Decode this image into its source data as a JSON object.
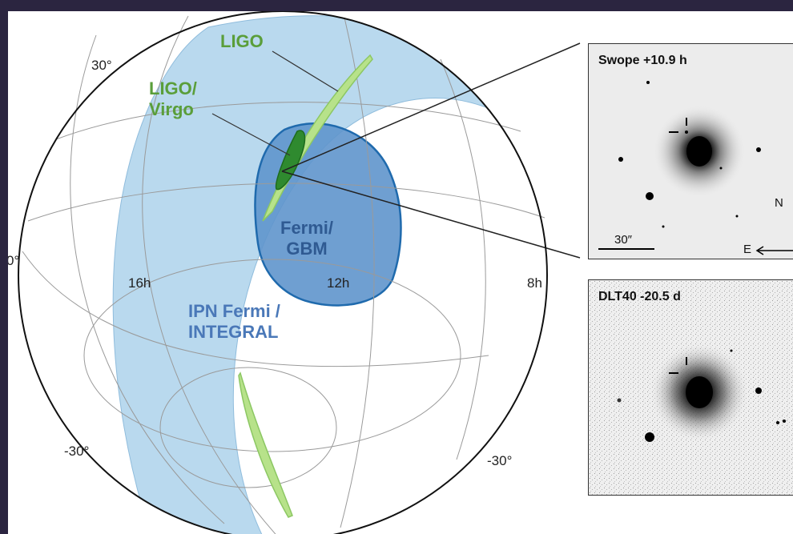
{
  "sky_map": {
    "dec_labels": {
      "north": "30°",
      "equator": "0°",
      "south_left": "-30°",
      "south_right": "-30°"
    },
    "ra_labels": {
      "ra16": "16h",
      "ra12": "12h",
      "ra8": "8h"
    },
    "regions": {
      "ligo": "LIGO",
      "ligo_virgo": [
        "LIGO/",
        "Virgo"
      ],
      "fermi_gbm": [
        "Fermi/",
        "GBM"
      ],
      "ipn": [
        "IPN Fermi /",
        "INTEGRAL"
      ]
    },
    "colors": {
      "ipn_band": "#b9d9ee",
      "fermi_region": "#5f95cc",
      "ligo": "#b7e28a",
      "ligo_virgo": "#2f8a2f",
      "label_green": "#5a9e3a",
      "label_blue": "#4a78b8"
    }
  },
  "panels": {
    "swope": {
      "title": "Swope +10.9 h",
      "scale": "30″",
      "north": "N",
      "east": "E"
    },
    "dlt40": {
      "title": "DLT40 -20.5 d"
    }
  }
}
